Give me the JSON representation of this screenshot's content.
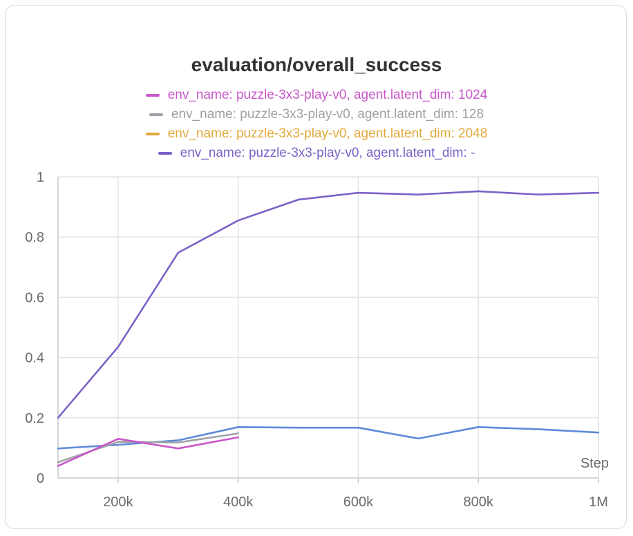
{
  "chart_data": {
    "type": "line",
    "title": "evaluation/overall_success",
    "xlabel": "Step",
    "ylabel": "",
    "xlim": [
      100000,
      1000000
    ],
    "ylim": [
      0,
      1
    ],
    "grid": true,
    "legend_position": "top",
    "x_ticks": [
      {
        "value": 200000,
        "label": "200k"
      },
      {
        "value": 400000,
        "label": "400k"
      },
      {
        "value": 600000,
        "label": "600k"
      },
      {
        "value": 800000,
        "label": "800k"
      },
      {
        "value": 1000000,
        "label": "1M"
      }
    ],
    "y_ticks": [
      {
        "value": 0,
        "label": "0"
      },
      {
        "value": 0.2,
        "label": "0.2"
      },
      {
        "value": 0.4,
        "label": "0.4"
      },
      {
        "value": 0.6,
        "label": "0.6"
      },
      {
        "value": 0.8,
        "label": "0.8"
      },
      {
        "value": 1,
        "label": "1"
      }
    ],
    "legend": [
      {
        "label": "env_name: puzzle-3x3-play-v0, agent.latent_dim: 1024",
        "color": "#c957c9"
      },
      {
        "label": "env_name: puzzle-3x3-play-v0, agent.latent_dim: 128",
        "color": "#9fa1a6"
      },
      {
        "label": "env_name: puzzle-3x3-play-v0, agent.latent_dim: 2048",
        "color": "#e2a93b"
      },
      {
        "label": "env_name: puzzle-3x3-play-v0, agent.latent_dim: -",
        "color": "#7c62c6"
      }
    ],
    "series": [
      {
        "id": "purple",
        "color": "#7c62c6",
        "x": [
          100000,
          200000,
          300000,
          400000,
          500000,
          600000,
          700000,
          800000,
          900000,
          1000000
        ],
        "y": [
          0.2,
          0.435,
          0.748,
          0.855,
          0.924,
          0.947,
          0.941,
          0.952,
          0.941,
          0.947
        ]
      },
      {
        "id": "blue",
        "color": "#5f8ad8",
        "x": [
          100000,
          200000,
          300000,
          400000,
          500000,
          600000,
          700000,
          800000,
          900000,
          1000000
        ],
        "y": [
          0.098,
          0.11,
          0.125,
          0.169,
          0.167,
          0.167,
          0.131,
          0.169,
          0.162,
          0.151
        ]
      },
      {
        "id": "gray",
        "color": "#9fa1a6",
        "x": [
          100000,
          200000,
          300000,
          400000
        ],
        "y": [
          0.052,
          0.12,
          0.118,
          0.148
        ]
      },
      {
        "id": "pink",
        "color": "#c957c9",
        "x": [
          100000,
          200000,
          300000,
          400000
        ],
        "y": [
          0.04,
          0.13,
          0.098,
          0.135
        ]
      }
    ]
  }
}
